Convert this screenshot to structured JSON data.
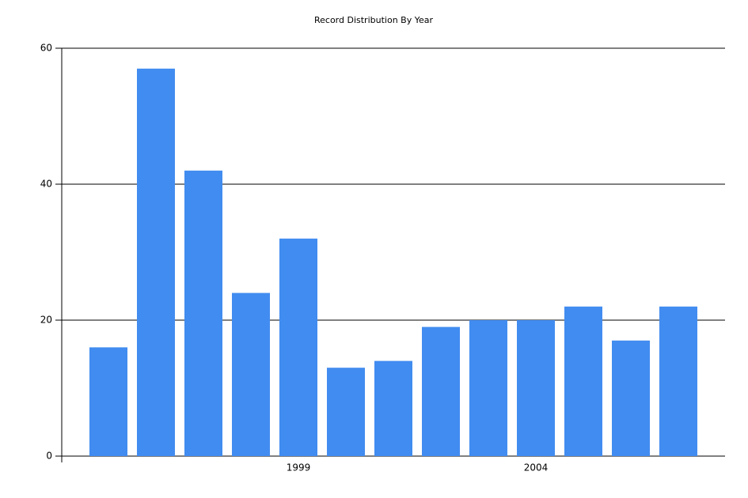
{
  "chart_data": {
    "type": "bar",
    "title": "Record Distribution By Year",
    "categories": [
      null,
      null,
      null,
      null,
      "1999",
      null,
      null,
      null,
      null,
      "2004",
      null,
      null,
      null
    ],
    "values": [
      16,
      57,
      42,
      24,
      32,
      13,
      14,
      19,
      20,
      20,
      22,
      17,
      22
    ],
    "color": "#418cf0",
    "ylim": [
      0,
      60
    ],
    "yticks": [
      0,
      20,
      40,
      60
    ],
    "grid": true
  }
}
